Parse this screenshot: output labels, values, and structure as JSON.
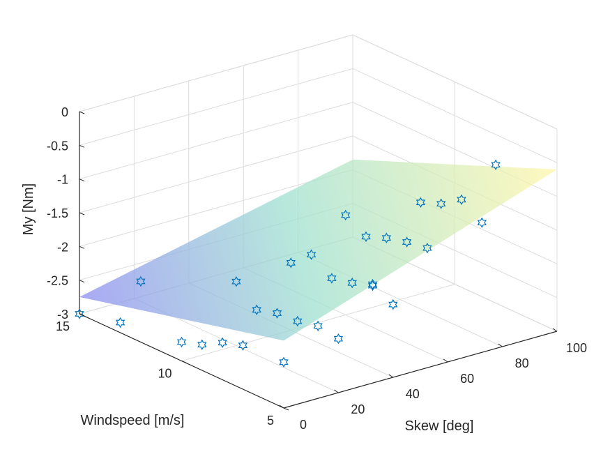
{
  "chart_data": {
    "type": "scatter",
    "title": "",
    "xlabel": "Skew [deg]",
    "ylabel": "Windspeed [m/s]",
    "zlabel": "My [Nm]",
    "xlim": [
      0,
      100
    ],
    "ylim": [
      5,
      15
    ],
    "zlim": [
      -3,
      0
    ],
    "xticks": [
      "0",
      "20",
      "40",
      "60",
      "80",
      "100"
    ],
    "yticks": [
      "5",
      "10",
      "15"
    ],
    "zticks": [
      "-3",
      "-2.5",
      "-2",
      "-1.5",
      "-1",
      "-0.5",
      "0"
    ],
    "grid": true,
    "marker": "hexagram",
    "colors": {
      "marker": "#0072BD",
      "grid": "#dcdcdc",
      "axis": "#262626",
      "surface_low": "#8c8cf0",
      "surface_mid": "#9fe0d0",
      "surface_high": "#fff6a8"
    },
    "surface": {
      "x": [
        0,
        100
      ],
      "y": [
        5,
        15
      ],
      "z": [
        [
          -2.0,
          -0.6
        ],
        [
          -2.75,
          -1.85
        ]
      ]
    },
    "series": [
      {
        "type": "scatter",
        "points": [
          {
            "x": 0,
            "y": 15,
            "z": -3.0
          },
          {
            "x": 0,
            "y": 13,
            "z": -2.85
          },
          {
            "x": 0,
            "y": 10,
            "z": -2.72
          },
          {
            "x": 0,
            "y": 9,
            "z": -2.62
          },
          {
            "x": 0,
            "y": 8,
            "z": -2.45
          },
          {
            "x": 0,
            "y": 7,
            "z": -2.35
          },
          {
            "x": 0,
            "y": 5,
            "z": -2.32
          },
          {
            "x": 0,
            "y": 12,
            "z": -2.1
          },
          {
            "x": 20,
            "y": 9,
            "z": -2.33
          },
          {
            "x": 20,
            "y": 8,
            "z": -2.24
          },
          {
            "x": 20,
            "y": 7,
            "z": -2.22
          },
          {
            "x": 20,
            "y": 6,
            "z": -2.15
          },
          {
            "x": 20,
            "y": 5,
            "z": -2.2
          },
          {
            "x": 20,
            "y": 10,
            "z": -2.05
          },
          {
            "x": 40,
            "y": 8,
            "z": -1.95
          },
          {
            "x": 40,
            "y": 7,
            "z": -1.88
          },
          {
            "x": 40,
            "y": 6,
            "z": -1.76
          },
          {
            "x": 40,
            "y": 5,
            "z": -1.92
          },
          {
            "x": 40,
            "y": 10,
            "z": -2.0
          },
          {
            "x": 40,
            "y": 9,
            "z": -1.74
          },
          {
            "x": 40,
            "y": 6,
            "z": -1.78
          },
          {
            "x": 60,
            "y": 9,
            "z": -1.7
          },
          {
            "x": 60,
            "y": 8,
            "z": -1.58
          },
          {
            "x": 60,
            "y": 7,
            "z": -1.5
          },
          {
            "x": 60,
            "y": 6,
            "z": -1.45
          },
          {
            "x": 60,
            "y": 10,
            "z": -1.52
          },
          {
            "x": 80,
            "y": 9,
            "z": -1.42
          },
          {
            "x": 80,
            "y": 8,
            "z": -1.3
          },
          {
            "x": 80,
            "y": 7,
            "z": -1.1
          },
          {
            "x": 80,
            "y": 6,
            "z": -1.3
          },
          {
            "x": 100,
            "y": 8,
            "z": -0.95
          }
        ]
      }
    ]
  }
}
